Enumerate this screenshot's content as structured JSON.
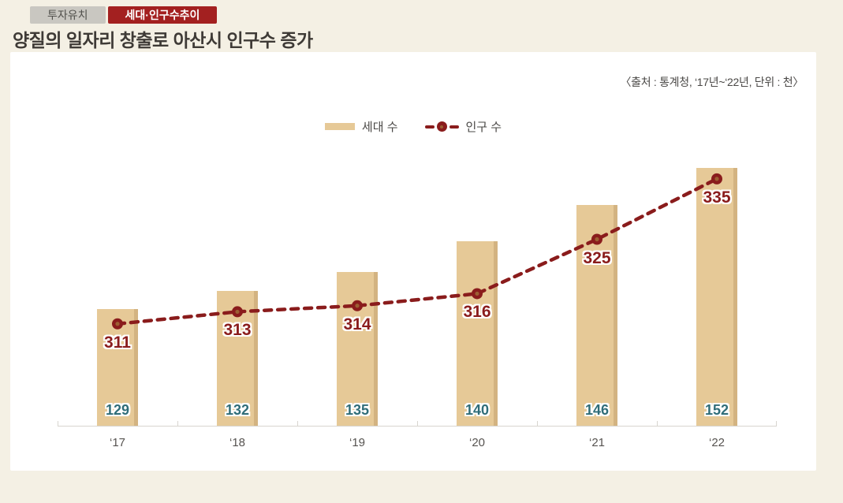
{
  "tabs": [
    {
      "label": "투자유치",
      "active": false
    },
    {
      "label": "세대·인구수추이",
      "active": true
    }
  ],
  "title": "양질의 일자리 창출로 아산시 인구수 증가",
  "source": "〈출처 : 통계청, ‘17년~‘22년, 단위 : 천〉",
  "legend": {
    "bar_label": "세대 수",
    "line_label": "인구 수"
  },
  "colors": {
    "bar": "#e6c997",
    "bar_shadow": "#d3b381",
    "line": "#8a1c1c",
    "marker_center": "#9c5f33",
    "bar_value_text": "#2f6d79",
    "tab_active_bg": "#a32020",
    "tab_inactive_bg": "#c9c7c1",
    "page_bg": "#f4f0e4",
    "panel_bg": "#ffffff"
  },
  "chart_data": {
    "type": "bar",
    "categories": [
      "‘17",
      "‘18",
      "‘19",
      "‘20",
      "‘21",
      "‘22"
    ],
    "series": [
      {
        "name": "세대 수",
        "type": "bar",
        "values": [
          129,
          132,
          135,
          140,
          146,
          152
        ]
      },
      {
        "name": "인구 수",
        "type": "line",
        "values": [
          311,
          313,
          314,
          316,
          325,
          335
        ]
      }
    ],
    "title": "양질의 일자리 창출로 아산시 인구수 증가",
    "xlabel": "",
    "ylabel": "",
    "unit": "천",
    "bar_axis": {
      "min": 110,
      "max": 171
    },
    "line_axis": {
      "min": 294,
      "max": 356
    },
    "legend_position": "top",
    "grid": false
  }
}
